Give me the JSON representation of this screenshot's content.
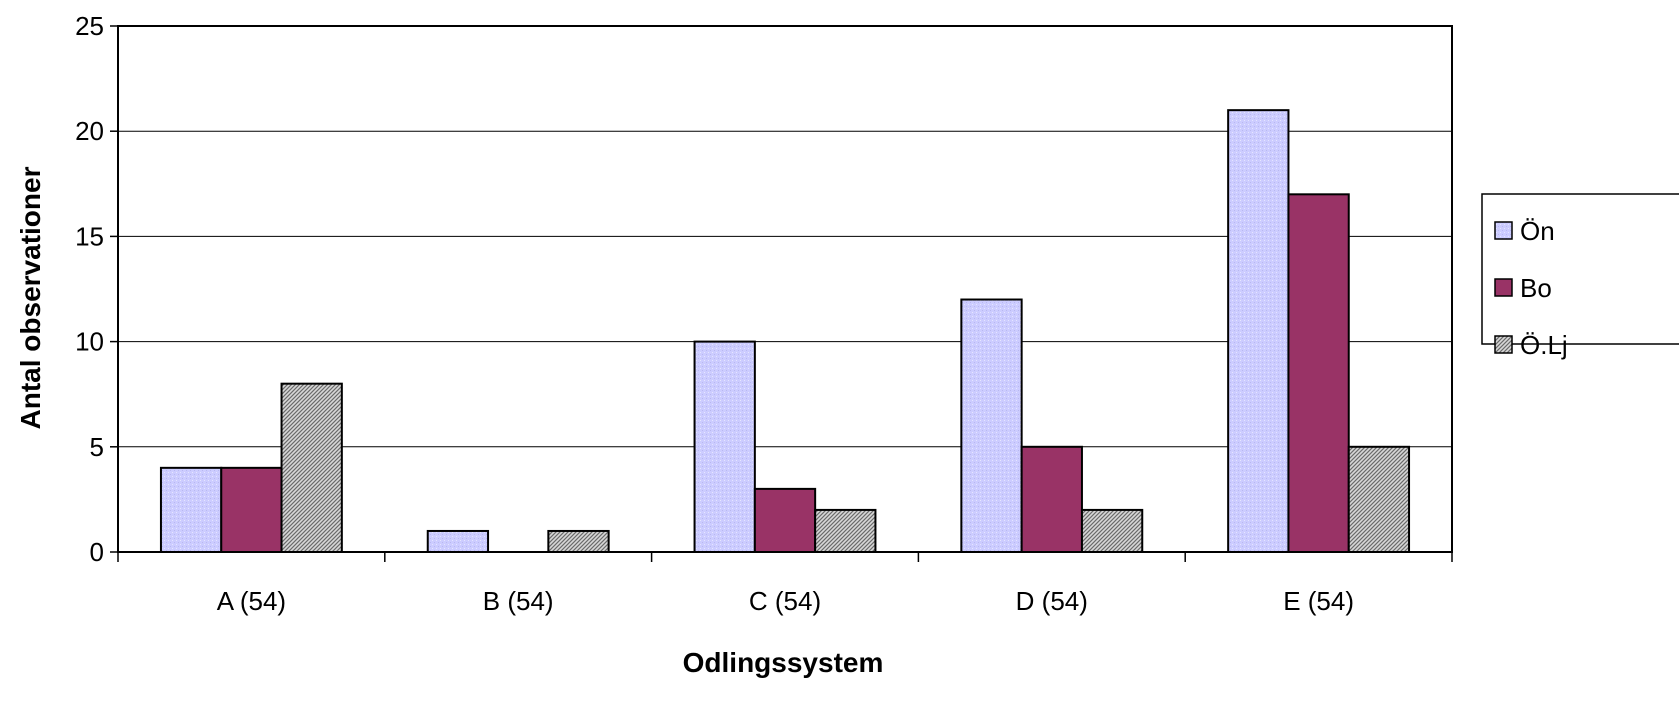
{
  "chart_data": {
    "type": "bar",
    "title": "",
    "xlabel": "Odlingssystem",
    "ylabel": "Antal observationer",
    "categories": [
      "A (54)",
      "B (54)",
      "C (54)",
      "D (54)",
      "E (54)"
    ],
    "series": [
      {
        "name": "Ön",
        "values": [
          4,
          1,
          10,
          12,
          21
        ],
        "color": "#ccccff",
        "pattern": "light-dots"
      },
      {
        "name": "Bo",
        "values": [
          4,
          0,
          3,
          5,
          17
        ],
        "color": "#993366",
        "pattern": "solid"
      },
      {
        "name": "Ö.Lj",
        "values": [
          8,
          1,
          2,
          2,
          5
        ],
        "color": "#b0b0b0",
        "pattern": "dense-hatch"
      }
    ],
    "ylim": [
      0,
      25
    ],
    "yticks": [
      0,
      5,
      10,
      15,
      20,
      25
    ],
    "grid": true,
    "legend": "right"
  }
}
